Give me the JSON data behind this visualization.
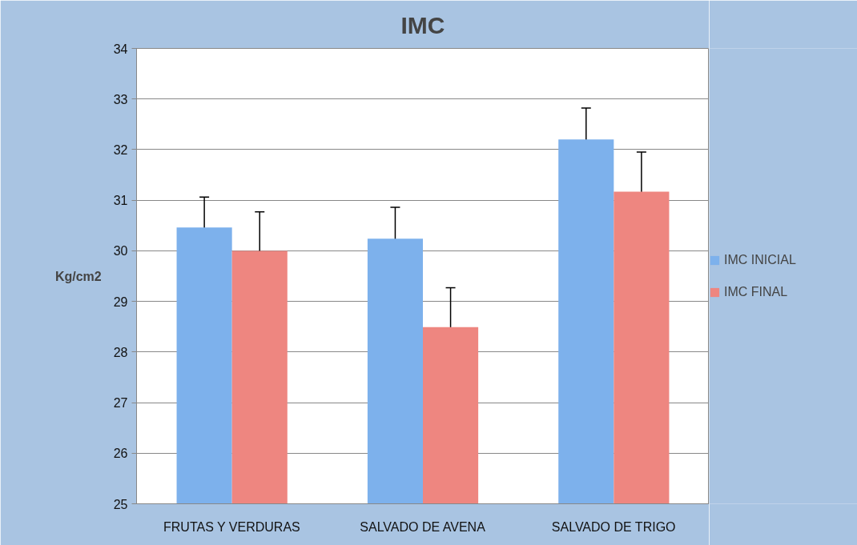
{
  "chart_data": {
    "type": "bar",
    "title": "IMC",
    "ylabel": "Kg/cm2",
    "categories": [
      "FRUTAS Y VERDURAS",
      "SALVADO DE AVENA",
      "SALVADO DE TRIGO"
    ],
    "series": [
      {
        "name": "IMC INICIAL",
        "color": "#7db1ec",
        "values": [
          30.46,
          30.24,
          32.2
        ],
        "errors": [
          0.6,
          0.62,
          0.62
        ]
      },
      {
        "name": "IMC FINAL",
        "color": "#ee8680",
        "values": [
          30.0,
          28.49,
          31.17
        ],
        "errors": [
          0.77,
          0.78,
          0.78
        ]
      }
    ],
    "ylim": [
      25,
      34
    ],
    "yticks": [
      25,
      26,
      27,
      28,
      29,
      30,
      31,
      32,
      33,
      34
    ],
    "grid": "y",
    "legend": "right"
  }
}
